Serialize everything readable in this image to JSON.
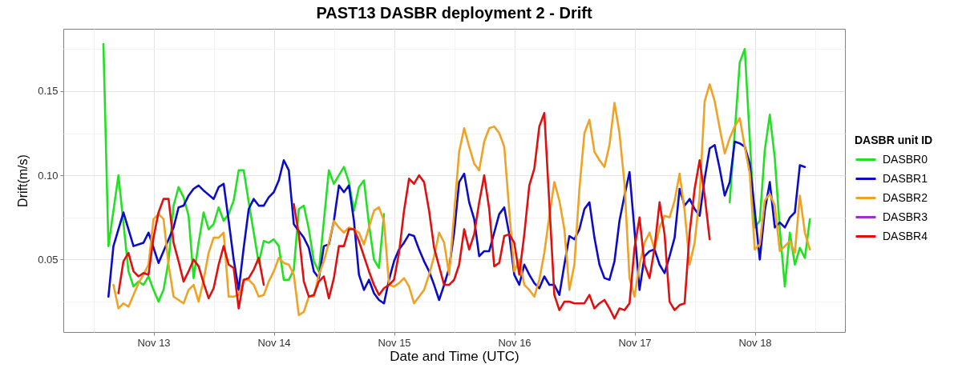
{
  "chart_data": {
    "type": "line",
    "title": "PAST13 DASBR deployment 2 - Drift",
    "xlabel": "Date and Time (UTC)",
    "ylabel": "Drift(m/s)",
    "legend_title": "DASBR unit ID",
    "legend": "right",
    "grid": true,
    "xlim": [
      "--11-12T06:00",
      "--11-18T18:00"
    ],
    "xticks": [
      {
        "value": "--11-12T12:00",
        "label": null
      },
      {
        "value": "--11-13",
        "label": "Nov 13"
      },
      {
        "value": "--11-13T12:00",
        "label": null
      },
      {
        "value": "--11-14",
        "label": "Nov 14"
      },
      {
        "value": "--11-14T12:00",
        "label": null
      },
      {
        "value": "--11-15",
        "label": "Nov 15"
      },
      {
        "value": "--11-15T12:00",
        "label": null
      },
      {
        "value": "--11-16",
        "label": "Nov 16"
      },
      {
        "value": "--11-16T12:00",
        "label": null
      },
      {
        "value": "--11-17",
        "label": "Nov 17"
      },
      {
        "value": "--11-17T12:00",
        "label": null
      },
      {
        "value": "--11-18",
        "label": "Nov 18"
      },
      {
        "value": "--11-18T12:00",
        "label": null
      }
    ],
    "ylim": [
      0.007,
      0.187
    ],
    "yticks": [
      {
        "value": 0.025,
        "label": null
      },
      0.05,
      {
        "value": 0.075,
        "label": null
      },
      {
        "value": 0.1,
        "label": "0.10"
      },
      {
        "value": 0.125,
        "label": null
      },
      0.15,
      {
        "value": 0.175,
        "label": null
      }
    ],
    "series": [
      {
        "name": "DASBR0",
        "color": "#22e022",
        "x": [
          "--11-12T14:00",
          "--11-12T15:00",
          "--11-12T17:00",
          "--11-12T19:00",
          "--11-12T20:00",
          "--11-12T21:00",
          "--11-12T22:00",
          "--11-12T23:00",
          "--11-13T00:00",
          "--11-13T01:00",
          "--11-13T02:00",
          "--11-13T03:00",
          "--11-13T04:00",
          "--11-13T05:00",
          "--11-13T06:00",
          "--11-13T07:00",
          "--11-13T08:00",
          "--11-13T09:00",
          "--11-13T10:00",
          "--11-13T11:00",
          "--11-13T12:00",
          "--11-13T13:00",
          "--11-13T14:00",
          "--11-13T15:00",
          "--11-13T16:00",
          "--11-13T17:00",
          "--11-13T18:00",
          "--11-13T19:00",
          "--11-13T20:00",
          "--11-13T21:00",
          "--11-13T22:00",
          "--11-13T23:00",
          "--11-14T00:00",
          "--11-14T01:00",
          "--11-14T02:00",
          "--11-14T03:00",
          "--11-14T04:00",
          "--11-14T05:00",
          "--11-14T06:00",
          "--11-14T07:00",
          "--11-14T08:00",
          "--11-14T09:00",
          "--11-14T11:00",
          "--11-14T12:00",
          "--11-14T14:00",
          "--11-14T15:00",
          "--11-14T16:00",
          "--11-14T17:00",
          "--11-14T18:00",
          "--11-14T19:00",
          "--11-14T20:00",
          "--11-14T21:00",
          "--11-14T22:00",
          "--11-14T23:00",
          "--11-17T19:00",
          "--11-17T21:00",
          "--11-17T22:00",
          "--11-18T00:00",
          "--11-18T01:00",
          "--11-18T02:00",
          "--11-18T03:00",
          "--11-18T04:00",
          "--11-18T05:00",
          "--11-18T06:00",
          "--11-18T07:00",
          "--11-18T08:00",
          "--11-18T09:00",
          "--11-18T10:00",
          "--11-18T11:00"
        ],
        "values": [
          0.178,
          0.058,
          0.1,
          0.043,
          0.034,
          0.037,
          0.035,
          0.04,
          0.032,
          0.025,
          0.032,
          0.049,
          0.082,
          0.093,
          0.087,
          0.076,
          0.039,
          0.06,
          0.078,
          0.068,
          0.071,
          0.081,
          0.073,
          0.077,
          0.085,
          0.103,
          0.103,
          0.084,
          0.066,
          0.048,
          0.061,
          0.06,
          0.062,
          0.058,
          0.038,
          0.038,
          0.044,
          0.08,
          0.082,
          0.068,
          0.049,
          0.043,
          0.103,
          0.095,
          0.105,
          0.096,
          0.079,
          0.093,
          0.097,
          0.071,
          0.05,
          0.045,
          0.077,
          null,
          0.084,
          0.167,
          0.175,
          0.069,
          0.073,
          0.115,
          0.136,
          0.11,
          0.068,
          0.034,
          0.066,
          0.047,
          0.057,
          0.051,
          0.074
        ]
      },
      {
        "name": "DASBR1",
        "color": "#0b0bc8",
        "x": [
          "--11-12T15:00",
          "--11-12T16:00",
          "--11-12T18:00",
          "--11-12T19:00",
          "--11-12T20:00",
          "--11-12T21:00",
          "--11-12T22:00",
          "--11-12T23:00",
          "--11-13T00:00",
          "--11-13T01:00",
          "--11-13T02:00",
          "--11-13T04:00",
          "--11-13T05:00",
          "--11-13T06:00",
          "--11-13T07:00",
          "--11-13T08:00",
          "--11-13T09:00",
          "--11-13T10:00",
          "--11-13T12:00",
          "--11-13T13:00",
          "--11-13T14:00",
          "--11-13T15:00",
          "--11-13T16:00",
          "--11-13T17:00",
          "--11-13T18:00",
          "--11-13T19:00",
          "--11-13T20:00",
          "--11-13T21:00",
          "--11-13T22:00",
          "--11-13T23:00",
          "--11-14T00:00",
          "--11-14T01:00",
          "--11-14T02:00",
          "--11-14T03:00",
          "--11-14T04:00",
          "--11-14T05:00",
          "--11-14T06:00",
          "--11-14T07:00",
          "--11-14T08:00",
          "--11-14T09:00",
          "--11-14T10:00",
          "--11-14T11:00",
          "--11-14T12:00",
          "--11-14T13:00",
          "--11-14T14:00",
          "--11-14T15:00",
          "--11-14T16:00",
          "--11-14T17:00",
          "--11-14T18:00",
          "--11-14T19:00",
          "--11-14T20:00",
          "--11-14T21:00",
          "--11-14T22:00",
          "--11-14T23:00",
          "--11-15T00:00",
          "--11-15T01:00",
          "--11-15T02:00",
          "--11-15T03:00",
          "--11-15T04:00",
          "--11-15T05:00",
          "--11-15T06:00",
          "--11-15T07:00",
          "--11-15T08:00",
          "--11-15T09:00",
          "--11-15T10:00",
          "--11-15T11:00",
          "--11-15T12:00",
          "--11-15T13:00",
          "--11-15T14:00",
          "--11-15T15:00",
          "--11-15T16:00",
          "--11-15T17:00",
          "--11-15T18:00",
          "--11-15T19:00",
          "--11-15T20:00",
          "--11-15T21:00",
          "--11-15T22:00",
          "--11-15T23:00",
          "--11-16T00:00",
          "--11-16T01:00",
          "--11-16T02:00",
          "--11-16T03:00",
          "--11-16T04:00",
          "--11-16T05:00",
          "--11-16T06:00",
          "--11-16T07:00",
          "--11-16T08:00",
          "--11-16T09:00",
          "--11-16T10:00",
          "--11-16T11:00",
          "--11-16T12:00",
          "--11-16T13:00",
          "--11-16T14:00",
          "--11-16T15:00",
          "--11-16T16:00",
          "--11-16T17:00",
          "--11-16T18:00",
          "--11-16T19:00",
          "--11-16T20:00",
          "--11-16T21:00",
          "--11-16T22:00",
          "--11-16T23:00",
          "--11-17T01:00",
          "--11-17T02:00",
          "--11-17T03:00",
          "--11-17T04:00",
          "--11-17T05:00",
          "--11-17T06:00",
          "--11-17T07:00",
          "--11-17T08:00",
          "--11-17T09:00",
          "--11-17T10:00",
          "--11-17T11:00",
          "--11-17T12:00",
          "--11-17T13:00",
          "--11-17T14:00",
          "--11-17T15:00",
          "--11-17T16:00",
          "--11-17T17:00",
          "--11-17T18:00",
          "--11-17T19:00",
          "--11-17T20:00",
          "--11-17T21:00",
          "--11-17T22:00",
          "--11-17T23:00",
          "--11-18T00:00",
          "--11-18T01:00",
          "--11-18T02:00",
          "--11-18T03:00",
          "--11-18T04:00",
          "--11-18T05:00",
          "--11-18T06:00",
          "--11-18T07:00",
          "--11-18T08:00",
          "--11-18T09:00",
          "--11-18T10:00"
        ],
        "values": [
          0.028,
          0.058,
          0.078,
          0.068,
          0.058,
          0.059,
          0.06,
          0.066,
          0.057,
          0.048,
          0.055,
          0.069,
          0.081,
          0.082,
          0.088,
          0.092,
          0.094,
          0.091,
          0.086,
          0.093,
          0.095,
          0.073,
          0.05,
          0.032,
          0.057,
          0.08,
          0.086,
          0.082,
          0.082,
          0.087,
          0.09,
          0.097,
          0.109,
          0.103,
          0.071,
          0.067,
          0.063,
          0.057,
          0.043,
          0.039,
          0.058,
          0.059,
          0.073,
          0.094,
          0.09,
          0.094,
          0.073,
          0.041,
          0.032,
          0.038,
          0.03,
          0.026,
          0.024,
          0.038,
          0.049,
          0.056,
          0.06,
          0.065,
          0.064,
          0.056,
          0.049,
          0.043,
          0.035,
          0.026,
          0.035,
          0.045,
          0.066,
          0.096,
          0.101,
          0.084,
          0.074,
          0.052,
          0.055,
          0.055,
          0.066,
          0.077,
          0.081,
          0.065,
          0.041,
          0.035,
          0.047,
          0.041,
          0.036,
          0.033,
          0.04,
          0.035,
          0.035,
          0.029,
          0.047,
          0.064,
          0.062,
          0.068,
          0.08,
          0.084,
          0.063,
          0.047,
          0.039,
          0.038,
          0.049,
          0.073,
          0.088,
          0.102,
          0.032,
          0.052,
          0.055,
          0.056,
          0.047,
          0.042,
          0.052,
          0.063,
          0.092,
          0.082,
          0.086,
          0.08,
          0.076,
          0.098,
          0.116,
          0.118,
          0.104,
          0.088,
          0.096,
          0.12,
          0.119,
          0.117,
          0.107,
          0.079,
          0.05,
          0.079,
          0.096,
          0.069,
          0.072,
          0.069,
          0.075,
          0.078,
          0.106,
          0.105
        ]
      },
      {
        "name": "DASBR2",
        "color": "#f0a224",
        "x": [
          "--11-12T16:00",
          "--11-12T17:00",
          "--11-12T18:00",
          "--11-12T19:00",
          "--11-12T20:00",
          "--11-12T21:00",
          "--11-12T22:00",
          "--11-12T23:00",
          "--11-13T00:00",
          "--11-13T01:00",
          "--11-13T02:00",
          "--11-13T03:00",
          "--11-13T04:00",
          "--11-13T05:00",
          "--11-13T06:00",
          "--11-13T07:00",
          "--11-13T08:00",
          "--11-13T09:00",
          "--11-13T10:00",
          "--11-13T11:00",
          "--11-13T12:00",
          "--11-13T13:00",
          "--11-13T14:00",
          "--11-13T15:00",
          "--11-13T16:00",
          "--11-13T17:00",
          "--11-13T18:00",
          "--11-13T19:00",
          "--11-13T20:00",
          "--11-13T21:00",
          "--11-13T22:00",
          "--11-13T23:00",
          "--11-14T00:00",
          "--11-14T01:00",
          "--11-14T02:00",
          "--11-14T03:00",
          "--11-14T04:00",
          "--11-14T05:00",
          "--11-14T06:00",
          "--11-14T07:00",
          "--11-14T08:00",
          "--11-14T09:00",
          "--11-14T10:00",
          "--11-14T11:00",
          "--11-14T12:00",
          "--11-14T13:00",
          "--11-14T14:00",
          "--11-14T15:00",
          "--11-14T16:00",
          "--11-14T17:00",
          "--11-14T18:00",
          "--11-14T19:00",
          "--11-14T20:00",
          "--11-14T21:00",
          "--11-14T22:00",
          "--11-14T23:00",
          "--11-15T00:00",
          "--11-15T01:00",
          "--11-15T02:00",
          "--11-15T03:00",
          "--11-15T04:00",
          "--11-15T05:00",
          "--11-15T06:00",
          "--11-15T07:00",
          "--11-15T08:00",
          "--11-15T09:00",
          "--11-15T10:00",
          "--11-15T11:00",
          "--11-15T13:00",
          "--11-15T14:00",
          "--11-15T15:00",
          "--11-15T16:00",
          "--11-15T17:00",
          "--11-15T18:00",
          "--11-15T19:00",
          "--11-15T20:00",
          "--11-15T21:00",
          "--11-15T22:00",
          "--11-15T23:00",
          "--11-16T00:00",
          "--11-16T01:00",
          "--11-16T02:00",
          "--11-16T03:00",
          "--11-16T04:00",
          "--11-16T05:00",
          "--11-16T06:00",
          "--11-16T07:00",
          "--11-16T08:00",
          "--11-16T09:00",
          "--11-16T10:00",
          "--11-16T11:00",
          "--11-16T12:00",
          "--11-16T13:00",
          "--11-16T14:00",
          "--11-16T15:00",
          "--11-16T16:00",
          "--11-16T17:00",
          "--11-16T18:00",
          "--11-16T19:00",
          "--11-16T20:00",
          "--11-16T21:00",
          "--11-16T22:00",
          "--11-16T23:00",
          "--11-17T00:00",
          "--11-17T01:00",
          "--11-17T02:00",
          "--11-17T03:00",
          "--11-17T04:00",
          "--11-17T05:00",
          "--11-17T06:00",
          "--11-17T07:00",
          "--11-17T08:00",
          "--11-17T09:00",
          "--11-17T10:00",
          "--11-17T11:00",
          "--11-17T12:00",
          "--11-17T13:00",
          "--11-17T14:00",
          "--11-17T15:00",
          "--11-17T16:00",
          "--11-17T17:00",
          "--11-17T18:00",
          "--11-17T19:00",
          "--11-17T20:00",
          "--11-17T21:00",
          "--11-17T22:00",
          "--11-17T23:00",
          "--11-18T00:00",
          "--11-18T01:00",
          "--11-18T02:00",
          "--11-18T03:00",
          "--11-18T04:00",
          "--11-18T05:00",
          "--11-18T06:00",
          "--11-18T07:00",
          "--11-18T08:00",
          "--11-18T09:00",
          "--11-18T10:00",
          "--11-18T11:00"
        ],
        "values": [
          0.035,
          0.021,
          0.024,
          0.022,
          0.029,
          0.036,
          0.041,
          0.047,
          0.074,
          0.077,
          0.074,
          0.047,
          0.028,
          0.026,
          0.024,
          0.032,
          0.035,
          0.025,
          0.038,
          0.054,
          0.063,
          0.063,
          0.066,
          0.028,
          0.028,
          0.029,
          0.038,
          0.038,
          0.035,
          0.028,
          0.029,
          0.037,
          0.043,
          0.051,
          0.048,
          0.047,
          0.041,
          0.017,
          0.019,
          0.028,
          0.028,
          0.041,
          0.049,
          0.06,
          0.073,
          0.069,
          0.066,
          0.069,
          0.068,
          0.066,
          0.059,
          0.069,
          0.079,
          0.081,
          0.073,
          0.035,
          0.034,
          0.036,
          0.039,
          0.034,
          0.024,
          0.028,
          0.032,
          0.041,
          0.052,
          0.066,
          0.06,
          0.041,
          0.114,
          0.128,
          0.117,
          0.107,
          0.103,
          0.12,
          0.128,
          0.129,
          0.125,
          0.117,
          0.079,
          0.043,
          0.05,
          0.035,
          0.032,
          0.028,
          0.038,
          0.054,
          0.076,
          0.096,
          0.085,
          0.068,
          0.032,
          0.047,
          0.092,
          0.125,
          0.133,
          0.114,
          0.109,
          0.105,
          0.118,
          0.143,
          0.125,
          0.095,
          0.039,
          0.028,
          0.047,
          0.06,
          0.066,
          0.056,
          0.069,
          0.076,
          0.075,
          0.085,
          0.101,
          0.079,
          0.047,
          0.06,
          0.088,
          0.144,
          0.154,
          0.144,
          0.128,
          0.113,
          0.122,
          0.129,
          0.134,
          0.117,
          0.101,
          0.056,
          0.059,
          0.085,
          0.089,
          0.082,
          0.055,
          0.058,
          0.061,
          0.054,
          0.088,
          0.066,
          0.056
        ]
      },
      {
        "name": "DASBR3",
        "color": "#9b30d0"
      },
      {
        "name": "DASBR4",
        "color": "#e01010",
        "x": [
          "--11-12T17:00",
          "--11-12T18:00",
          "--11-12T19:00",
          "--11-12T20:00",
          "--11-12T21:00",
          "--11-12T22:00",
          "--11-12T23:00",
          "--11-13T00:00",
          "--11-13T01:00",
          "--11-13T02:00",
          "--11-13T03:00",
          "--11-13T04:00",
          "--11-13T05:00",
          "--11-13T06:00",
          "--11-13T07:00",
          "--11-13T08:00",
          "--11-13T09:00",
          "--11-13T10:00",
          "--11-13T11:00",
          "--11-13T12:00",
          "--11-13T13:00",
          "--11-13T14:00",
          "--11-13T15:00",
          "--11-13T16:00",
          "--11-13T17:00",
          "--11-13T18:00",
          "--11-13T19:00",
          "--11-13T20:00",
          "--11-13T21:00",
          "--11-13T22:00",
          "--11-13T23:00",
          "--11-14T04:00",
          "--11-14T05:00",
          "--11-14T06:00",
          "--11-14T07:00",
          "--11-14T08:00",
          "--11-14T09:00",
          "--11-14T10:00",
          "--11-14T11:00",
          "--11-14T12:00",
          "--11-14T13:00",
          "--11-14T14:00",
          "--11-14T15:00",
          "--11-14T16:00",
          "--11-14T17:00",
          "--11-14T18:00",
          "--11-14T19:00",
          "--11-14T20:00",
          "--11-14T21:00",
          "--11-14T22:00",
          "--11-14T23:00",
          "--11-15T00:00",
          "--11-15T01:00",
          "--11-15T02:00",
          "--11-15T03:00",
          "--11-15T04:00",
          "--11-15T05:00",
          "--11-15T06:00",
          "--11-15T07:00",
          "--11-15T08:00",
          "--11-15T09:00",
          "--11-15T10:00",
          "--11-15T11:00",
          "--11-15T12:00",
          "--11-15T13:00",
          "--11-15T14:00",
          "--11-15T15:00",
          "--11-15T16:00",
          "--11-15T17:00",
          "--11-15T18:00",
          "--11-15T19:00",
          "--11-15T20:00",
          "--11-15T21:00",
          "--11-15T22:00",
          "--11-15T23:00",
          "--11-16T00:00",
          "--11-16T01:00",
          "--11-16T02:00",
          "--11-16T03:00",
          "--11-16T04:00",
          "--11-16T05:00",
          "--11-16T06:00",
          "--11-16T08:00",
          "--11-16T09:00",
          "--11-16T10:00",
          "--11-16T11:00",
          "--11-16T12:00",
          "--11-16T13:00",
          "--11-16T14:00",
          "--11-16T15:00",
          "--11-16T16:00",
          "--11-16T17:00",
          "--11-16T18:00",
          "--11-16T19:00",
          "--11-16T20:00",
          "--11-16T21:00",
          "--11-16T22:00",
          "--11-16T23:00",
          "--11-17T00:00",
          "--11-17T01:00",
          "--11-17T02:00",
          "--11-17T03:00",
          "--11-17T04:00",
          "--11-17T05:00",
          "--11-17T06:00",
          "--11-17T07:00",
          "--11-17T08:00",
          "--11-17T09:00",
          "--11-17T10:00",
          "--11-17T11:00",
          "--11-17T12:00",
          "--11-17T13:00",
          "--11-17T14:00",
          "--11-17T15:00"
        ],
        "values": [
          0.03,
          0.049,
          0.054,
          0.043,
          0.04,
          0.042,
          0.041,
          0.063,
          0.078,
          0.086,
          0.086,
          0.06,
          0.049,
          0.037,
          0.043,
          0.05,
          0.046,
          0.036,
          0.027,
          0.033,
          0.047,
          0.058,
          0.047,
          0.045,
          0.021,
          0.038,
          0.039,
          0.044,
          0.051,
          0.035,
          null,
          0.083,
          0.065,
          0.037,
          0.028,
          0.029,
          0.037,
          0.04,
          0.027,
          0.039,
          0.058,
          0.058,
          0.068,
          0.068,
          0.061,
          0.052,
          0.043,
          0.035,
          0.029,
          0.033,
          0.035,
          0.038,
          0.054,
          0.079,
          0.098,
          0.095,
          0.1,
          0.096,
          0.079,
          0.057,
          0.046,
          0.035,
          0.035,
          0.038,
          0.047,
          0.068,
          0.056,
          0.065,
          0.084,
          0.1,
          0.08,
          0.046,
          0.048,
          0.064,
          0.065,
          0.06,
          0.041,
          0.065,
          0.094,
          0.104,
          0.129,
          0.137,
          0.029,
          0.02,
          0.025,
          0.025,
          0.024,
          0.024,
          0.024,
          0.029,
          0.021,
          0.024,
          0.026,
          0.021,
          0.015,
          0.021,
          0.02,
          0.024,
          0.057,
          0.075,
          0.047,
          0.039,
          0.057,
          0.084,
          0.065,
          0.025,
          0.02,
          0.023,
          0.024,
          0.066,
          0.092,
          0.109,
          0.088,
          0.062
        ]
      }
    ]
  }
}
